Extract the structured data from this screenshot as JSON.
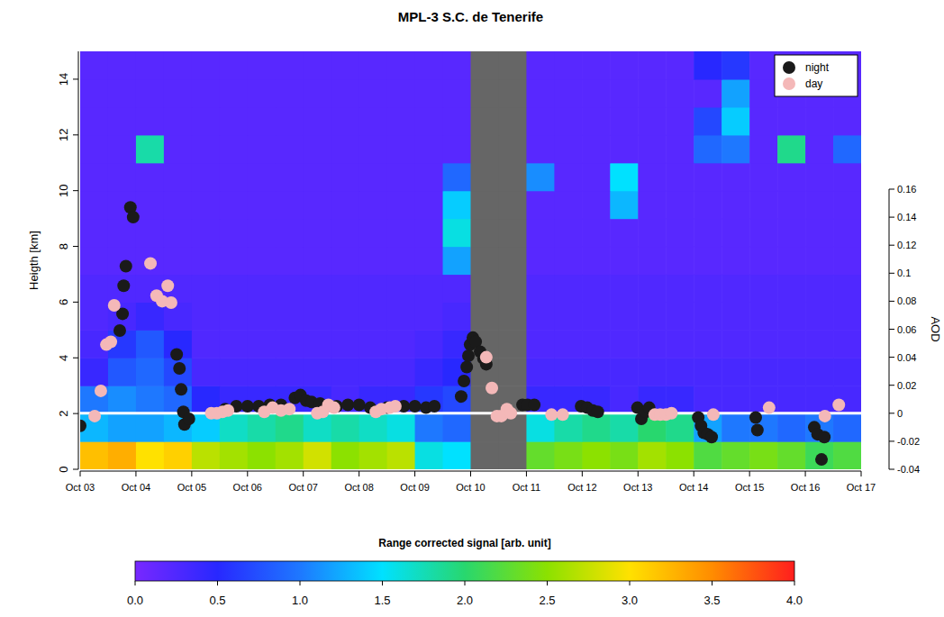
{
  "chart_data": {
    "type": "scatter",
    "title": "MPL-3 S.C. de Tenerife",
    "y_label": "Heigth [km]",
    "y2_label": "AOD",
    "xlim": [
      3,
      17
    ],
    "xticks": [
      {
        "value": 3,
        "label": "Oct 03"
      },
      {
        "value": 4,
        "label": "Oct 04"
      },
      {
        "value": 5,
        "label": "Oct 05"
      },
      {
        "value": 6,
        "label": "Oct 06"
      },
      {
        "value": 7,
        "label": "Oct 07"
      },
      {
        "value": 8,
        "label": "Oct 08"
      },
      {
        "value": 9,
        "label": "Oct 09"
      },
      {
        "value": 10,
        "label": "Oct 10"
      },
      {
        "value": 11,
        "label": "Oct 11"
      },
      {
        "value": 12,
        "label": "Oct 12"
      },
      {
        "value": 13,
        "label": "Oct 13"
      },
      {
        "value": 14,
        "label": "Oct 14"
      },
      {
        "value": 15,
        "label": "Oct 15"
      },
      {
        "value": 16,
        "label": "Oct 16"
      },
      {
        "value": 17,
        "label": "Oct 17"
      }
    ],
    "ylim": [
      0,
      15
    ],
    "yticks": [
      0,
      2,
      4,
      6,
      8,
      10,
      12,
      14
    ],
    "y2lim": [
      -0.04,
      0.16
    ],
    "y2ticks": [
      -0.04,
      -0.02,
      0,
      0.02,
      0.04,
      0.06,
      0.08,
      0.1,
      0.12,
      0.14,
      0.16
    ],
    "legend": "top-right",
    "series": [
      {
        "name": "night",
        "color": "#1a1a1a",
        "marker": "circle",
        "axis": "y2",
        "x": [
          3.0,
          3.71,
          3.76,
          3.78,
          3.82,
          3.9,
          3.95,
          4.73,
          4.78,
          4.81,
          4.85,
          4.87,
          4.95,
          5.6,
          5.8,
          6.0,
          6.2,
          6.4,
          6.6,
          6.85,
          6.95,
          7.05,
          7.15,
          7.3,
          7.6,
          7.8,
          8.0,
          8.2,
          8.5,
          8.8,
          9.0,
          9.2,
          9.35,
          9.83,
          9.88,
          9.93,
          9.96,
          9.99,
          10.04,
          10.09,
          10.17,
          10.23,
          10.28,
          10.93,
          11.02,
          11.14,
          11.98,
          12.09,
          12.19,
          12.28,
          12.99,
          13.06,
          13.14,
          13.2,
          14.08,
          14.13,
          14.18,
          14.25,
          14.32,
          15.11,
          15.14,
          16.16,
          16.22,
          16.29,
          16.34
        ],
        "values": [
          -0.009,
          0.059,
          0.071,
          0.091,
          0.105,
          0.147,
          0.14,
          0.042,
          0.032,
          0.017,
          0.001,
          -0.008,
          -0.004,
          0.003,
          0.005,
          0.005,
          0.005,
          0.006,
          0.006,
          0.011,
          0.013,
          0.009,
          0.008,
          0.007,
          0.005,
          0.006,
          0.006,
          0.004,
          0.004,
          0.005,
          0.005,
          0.004,
          0.005,
          0.012,
          0.023,
          0.033,
          0.041,
          0.049,
          0.054,
          0.051,
          0.044,
          0.039,
          0.035,
          0.006,
          0.006,
          0.006,
          0.005,
          0.004,
          0.002,
          0.001,
          0.004,
          -0.004,
          0.001,
          0.004,
          -0.003,
          -0.009,
          -0.014,
          -0.015,
          -0.017,
          -0.003,
          -0.012,
          -0.01,
          -0.015,
          -0.033,
          -0.017
        ]
      },
      {
        "name": "day",
        "color": "#f4b8b8",
        "marker": "circle",
        "axis": "y2",
        "x": [
          3.26,
          3.37,
          3.47,
          3.55,
          3.61,
          4.26,
          4.37,
          4.47,
          4.57,
          4.63,
          5.35,
          5.45,
          5.55,
          5.65,
          6.3,
          6.45,
          6.6,
          6.75,
          7.25,
          7.35,
          7.45,
          7.55,
          8.3,
          8.4,
          8.55,
          8.65,
          10.28,
          10.38,
          10.47,
          10.55,
          10.65,
          10.72,
          11.45,
          11.65,
          13.3,
          13.4,
          13.5,
          13.6,
          14.35,
          15.35,
          16.35,
          16.6
        ],
        "values": [
          -0.002,
          0.016,
          0.049,
          0.051,
          0.077,
          0.107,
          0.084,
          0.08,
          0.091,
          0.079,
          0.0,
          0.0,
          0.001,
          0.002,
          0.001,
          0.004,
          0.002,
          0.003,
          0.0,
          0.001,
          0.006,
          0.004,
          0.001,
          0.003,
          0.004,
          0.005,
          0.04,
          0.018,
          -0.002,
          -0.002,
          0.003,
          0.0,
          -0.001,
          -0.001,
          -0.001,
          -0.001,
          -0.001,
          0.0,
          -0.001,
          0.004,
          -0.002,
          0.006
        ]
      }
    ],
    "cells": [
      [
        3.2,
        3.3,
        3.0,
        3.1,
        2.7,
        2.6,
        2.5,
        2.6,
        2.8,
        2.5,
        2.6,
        2.7,
        1.6,
        1.5,
        null,
        null,
        2.3,
        2.4,
        2.5,
        2.4,
        2.6,
        2.5,
        2.2,
        2.3,
        2.4,
        2.3,
        2.1,
        2.2
      ],
      [
        1.3,
        1.2,
        1.2,
        1.3,
        1.4,
        1.7,
        1.8,
        1.9,
        1.7,
        1.8,
        1.7,
        1.6,
        1.0,
        0.9,
        null,
        null,
        1.6,
        1.8,
        1.9,
        1.8,
        2.0,
        1.9,
        1.2,
        1.0,
        1.0,
        0.9,
        1.0,
        0.9
      ],
      [
        1.0,
        1.1,
        1.0,
        0.9,
        0.5,
        0.4,
        0.4,
        0.4,
        0.4,
        0.3,
        0.4,
        0.4,
        0.6,
        0.7,
        null,
        null,
        0.4,
        0.4,
        0.4,
        0.3,
        0.4,
        0.4,
        0.3,
        0.3,
        0.3,
        0.3,
        0.3,
        0.3
      ],
      [
        0.4,
        0.8,
        0.9,
        0.7,
        0.3,
        0.3,
        0.3,
        0.3,
        0.3,
        0.3,
        0.3,
        0.3,
        0.4,
        0.5,
        null,
        null,
        0.3,
        0.3,
        0.3,
        0.3,
        0.3,
        0.3,
        0.3,
        0.3,
        0.3,
        0.3,
        0.3,
        0.3
      ],
      [
        0.3,
        0.6,
        0.8,
        0.5,
        0.25,
        0.25,
        0.25,
        0.25,
        0.25,
        0.25,
        0.25,
        0.25,
        0.3,
        0.4,
        null,
        null,
        0.25,
        0.25,
        0.25,
        0.25,
        0.25,
        0.25,
        0.25,
        0.25,
        0.25,
        0.25,
        0.25,
        0.25
      ],
      [
        0.25,
        0.3,
        0.4,
        0.3,
        0.25,
        0.25,
        0.25,
        0.25,
        0.25,
        0.25,
        0.25,
        0.25,
        0.25,
        0.3,
        null,
        null,
        0.25,
        0.25,
        0.25,
        0.25,
        0.25,
        0.25,
        0.25,
        0.25,
        0.25,
        0.25,
        0.25,
        0.25
      ],
      [
        0.25,
        0.25,
        0.25,
        0.25,
        0.25,
        0.25,
        0.25,
        0.25,
        0.25,
        0.25,
        0.25,
        0.25,
        0.25,
        0.25,
        null,
        null,
        0.25,
        0.25,
        0.25,
        0.25,
        0.25,
        0.25,
        0.25,
        0.25,
        0.25,
        0.25,
        0.25,
        0.25
      ],
      [
        0.2,
        0.2,
        0.2,
        0.2,
        0.2,
        0.2,
        0.2,
        0.2,
        0.2,
        0.2,
        0.2,
        0.2,
        0.2,
        1.2,
        null,
        null,
        0.2,
        0.2,
        0.2,
        0.2,
        0.2,
        0.2,
        0.2,
        0.2,
        0.2,
        0.2,
        0.2,
        0.2
      ],
      [
        0.2,
        0.2,
        0.2,
        0.2,
        0.2,
        0.2,
        0.2,
        0.2,
        0.2,
        0.2,
        0.2,
        0.2,
        0.2,
        1.6,
        null,
        null,
        0.2,
        0.2,
        0.2,
        0.2,
        0.2,
        0.2,
        0.2,
        0.2,
        0.2,
        0.2,
        0.2,
        0.2
      ],
      [
        0.2,
        0.2,
        0.2,
        0.2,
        0.2,
        0.2,
        0.2,
        0.2,
        0.2,
        0.2,
        0.2,
        0.2,
        0.2,
        1.4,
        null,
        null,
        0.2,
        0.2,
        0.2,
        1.3,
        0.2,
        0.2,
        0.2,
        0.2,
        0.2,
        0.2,
        0.2,
        0.2
      ],
      [
        0.2,
        0.2,
        0.2,
        0.2,
        0.2,
        0.2,
        0.2,
        0.2,
        0.2,
        0.2,
        0.2,
        0.2,
        0.2,
        0.9,
        null,
        null,
        1.1,
        0.2,
        0.2,
        1.5,
        0.2,
        0.2,
        0.2,
        0.2,
        0.2,
        0.2,
        0.2,
        0.2
      ],
      [
        0.2,
        0.2,
        1.8,
        0.2,
        0.2,
        0.2,
        0.2,
        0.2,
        0.2,
        0.2,
        0.2,
        0.2,
        0.2,
        0.2,
        null,
        null,
        0.2,
        0.2,
        0.2,
        0.2,
        0.2,
        0.2,
        0.9,
        1.0,
        0.2,
        1.9,
        0.2,
        0.9
      ],
      [
        0.2,
        0.2,
        0.2,
        0.2,
        0.2,
        0.2,
        0.2,
        0.2,
        0.2,
        0.2,
        0.2,
        0.2,
        0.2,
        0.2,
        null,
        null,
        0.2,
        0.2,
        0.2,
        0.2,
        0.2,
        0.2,
        0.7,
        1.4,
        0.2,
        0.2,
        0.2,
        0.2
      ],
      [
        0.2,
        0.2,
        0.2,
        0.2,
        0.2,
        0.2,
        0.2,
        0.2,
        0.2,
        0.2,
        0.2,
        0.2,
        0.2,
        0.2,
        null,
        null,
        0.2,
        0.2,
        0.2,
        0.2,
        0.2,
        0.2,
        0.2,
        1.2,
        0.2,
        0.2,
        0.2,
        0.2
      ],
      [
        0.2,
        0.2,
        0.2,
        0.2,
        0.2,
        0.2,
        0.2,
        0.2,
        0.2,
        0.2,
        0.2,
        0.2,
        0.2,
        0.2,
        null,
        null,
        0.2,
        0.2,
        0.2,
        0.2,
        0.2,
        0.2,
        0.5,
        0.6,
        0.2,
        0.2,
        0.2,
        0.2
      ]
    ],
    "colorbar": {
      "title": "Range corrected signal [arb. unit]",
      "lim": [
        0,
        4
      ],
      "ticks": [
        {
          "value": 0,
          "label": "0.0"
        },
        {
          "value": 0.5,
          "label": "0.5"
        },
        {
          "value": 1,
          "label": "1.0"
        },
        {
          "value": 1.5,
          "label": "1.5"
        },
        {
          "value": 2,
          "label": "2.0"
        },
        {
          "value": 2.5,
          "label": "2.5"
        },
        {
          "value": 3,
          "label": "3.0"
        },
        {
          "value": 3.5,
          "label": "3.5"
        },
        {
          "value": 4,
          "label": "4.0"
        }
      ]
    }
  }
}
